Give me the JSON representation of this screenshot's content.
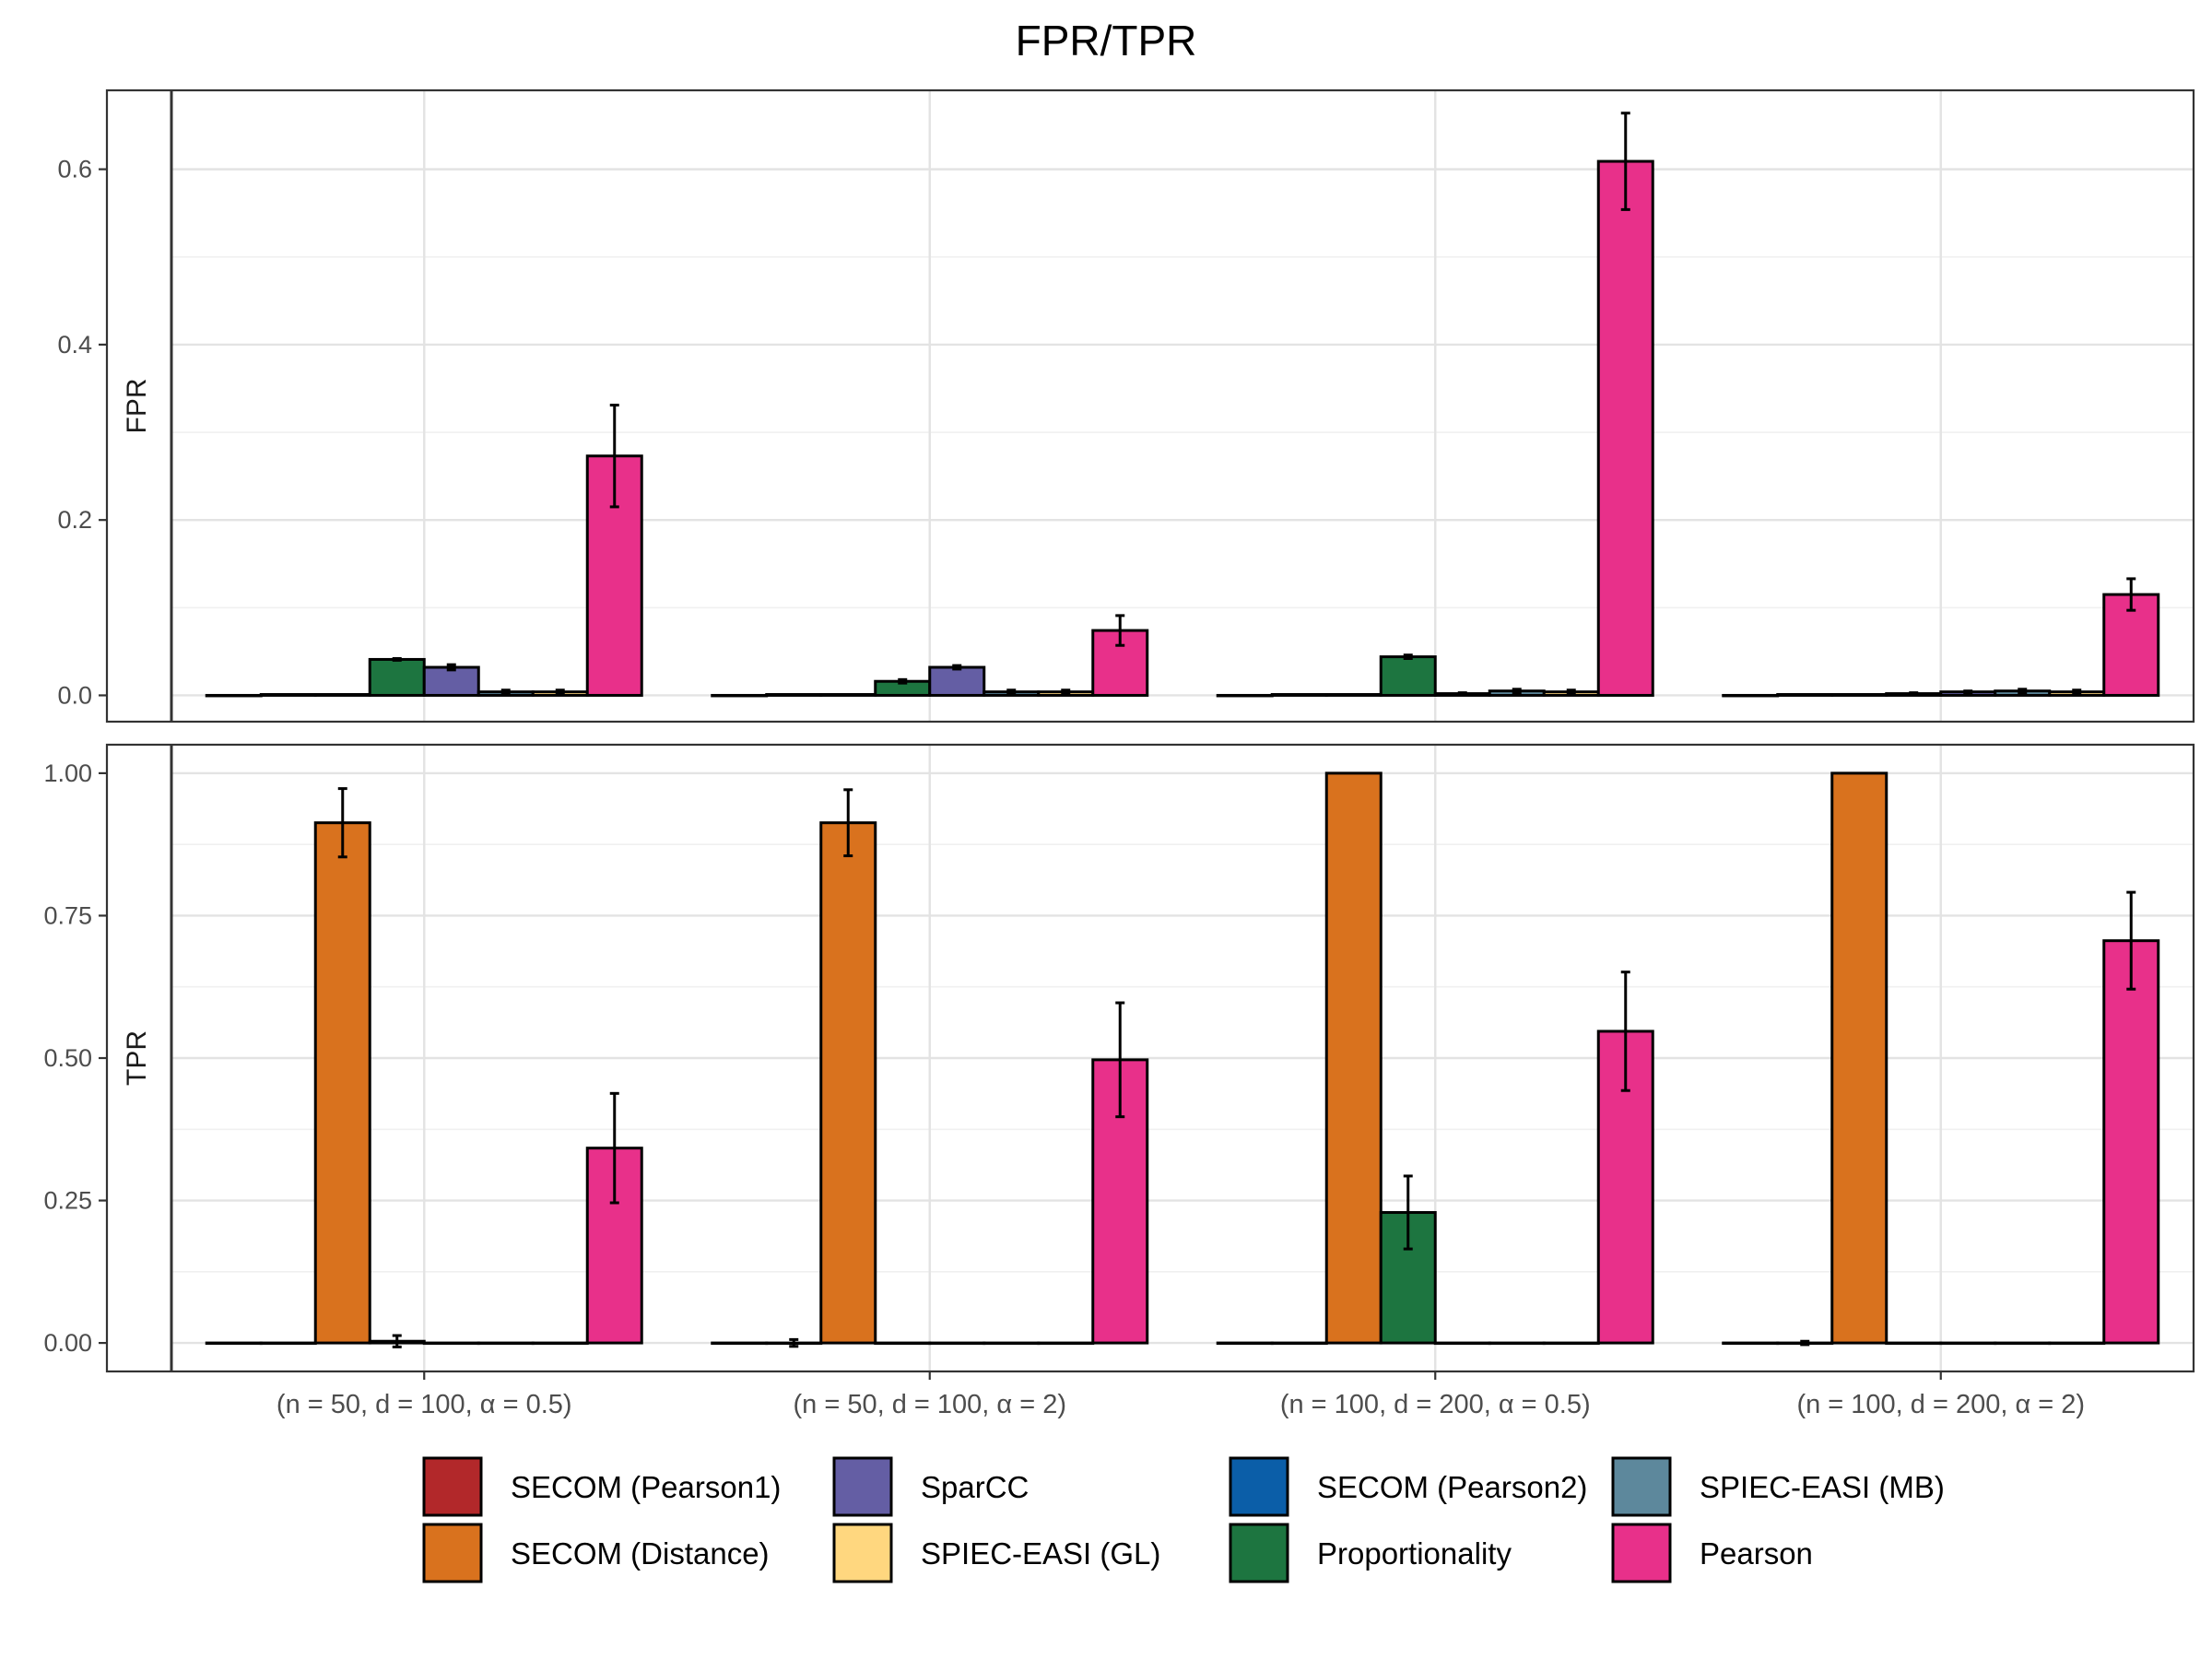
{
  "chart_data": {
    "type": "bar",
    "title": "FPR/TPR",
    "categories": [
      "(n = 50, d = 100, α = 0.5)",
      "(n = 50, d = 100, α = 2)",
      "(n = 100, d = 200, α = 0.5)",
      "(n = 100, d = 200, α = 2)"
    ],
    "methods": [
      {
        "name": "SECOM (Pearson1)",
        "color": "#b2282a"
      },
      {
        "name": "SECOM (Pearson2)",
        "color": "#0b5ea8"
      },
      {
        "name": "SECOM (Distance)",
        "color": "#d9721e"
      },
      {
        "name": "Proportionality",
        "color": "#1d7540"
      },
      {
        "name": "SparCC",
        "color": "#645ea4"
      },
      {
        "name": "SPIEC-EASI (MB)",
        "color": "#5d889c"
      },
      {
        "name": "SPIEC-EASI (GL)",
        "color": "#ffd77f"
      },
      {
        "name": "Pearson",
        "color": "#e8308a"
      }
    ],
    "legend_order": [
      0,
      2,
      4,
      6,
      1,
      3,
      5,
      7
    ],
    "legend_position": "bottom",
    "panels": [
      {
        "strip": "FPR",
        "ylim": [
          -0.03,
          0.69
        ],
        "y_ticks": [
          0.0,
          0.2,
          0.4,
          0.6
        ],
        "y_tick_labels": [
          "0.0",
          "0.2",
          "0.4",
          "0.6"
        ],
        "minor_ticks": [
          0.1,
          0.3,
          0.5
        ],
        "series": [
          {
            "name": "SECOM (Pearson1)",
            "values": [
              0.0,
              0.0,
              0.0,
              0.0
            ],
            "err": [
              0,
              0,
              0,
              0
            ]
          },
          {
            "name": "SECOM (Pearson2)",
            "values": [
              0.001,
              0.001,
              0.001,
              0.001
            ],
            "err": [
              0,
              0,
              0,
              0
            ]
          },
          {
            "name": "SECOM (Distance)",
            "values": [
              0.001,
              0.001,
              0.001,
              0.001
            ],
            "err": [
              0,
              0,
              0,
              0
            ]
          },
          {
            "name": "Proportionality",
            "values": [
              0.041,
              0.016,
              0.044,
              0.002
            ],
            "err": [
              0.001,
              0.002,
              0.002,
              0.001
            ]
          },
          {
            "name": "SparCC",
            "values": [
              0.032,
              0.032,
              0.002,
              0.004
            ],
            "err": [
              0.003,
              0.002,
              0.001,
              0.001
            ]
          },
          {
            "name": "SPIEC-EASI (MB)",
            "values": [
              0.004,
              0.004,
              0.005,
              0.005
            ],
            "err": [
              0.002,
              0.002,
              0.002,
              0.002
            ]
          },
          {
            "name": "SPIEC-EASI (GL)",
            "values": [
              0.004,
              0.004,
              0.004,
              0.004
            ],
            "err": [
              0.002,
              0.002,
              0.002,
              0.002
            ]
          },
          {
            "name": "Pearson",
            "values": [
              0.273,
              0.074,
              0.609,
              0.115
            ],
            "err": [
              0.058,
              0.017,
              0.055,
              0.018
            ]
          }
        ]
      },
      {
        "strip": "TPR",
        "ylim": [
          -0.05,
          1.05
        ],
        "y_ticks": [
          0.0,
          0.25,
          0.5,
          0.75,
          1.0
        ],
        "y_tick_labels": [
          "0.00",
          "0.25",
          "0.50",
          "0.75",
          "1.00"
        ],
        "minor_ticks": [
          0.125,
          0.375,
          0.625,
          0.875
        ],
        "series": [
          {
            "name": "SECOM (Pearson1)",
            "values": [
              0.0,
              0.0,
              0.0,
              0.0
            ],
            "err": [
              0,
              0,
              0,
              0
            ]
          },
          {
            "name": "SECOM (Pearson2)",
            "values": [
              0.0,
              0.0,
              0.0,
              0.0
            ],
            "err": [
              0,
              0.006,
              0,
              0.003
            ]
          },
          {
            "name": "SECOM (Distance)",
            "values": [
              0.913,
              0.913,
              1.0,
              1.0
            ],
            "err": [
              0.06,
              0.058,
              0,
              0
            ]
          },
          {
            "name": "Proportionality",
            "values": [
              0.003,
              0.0,
              0.229,
              0.0
            ],
            "err": [
              0.01,
              0,
              0.064,
              0
            ]
          },
          {
            "name": "SparCC",
            "values": [
              0.0,
              0.0,
              0.0,
              0.0
            ],
            "err": [
              0,
              0,
              0,
              0
            ]
          },
          {
            "name": "SPIEC-EASI (MB)",
            "values": [
              0.0,
              0.0,
              0.0,
              0.0
            ],
            "err": [
              0,
              0,
              0,
              0
            ]
          },
          {
            "name": "SPIEC-EASI (GL)",
            "values": [
              0.0,
              0.0,
              0.0,
              0.0
            ],
            "err": [
              0,
              0,
              0,
              0
            ]
          },
          {
            "name": "Pearson",
            "values": [
              0.342,
              0.497,
              0.547,
              0.706
            ],
            "err": [
              0.096,
              0.1,
              0.104,
              0.085
            ]
          }
        ]
      }
    ]
  }
}
